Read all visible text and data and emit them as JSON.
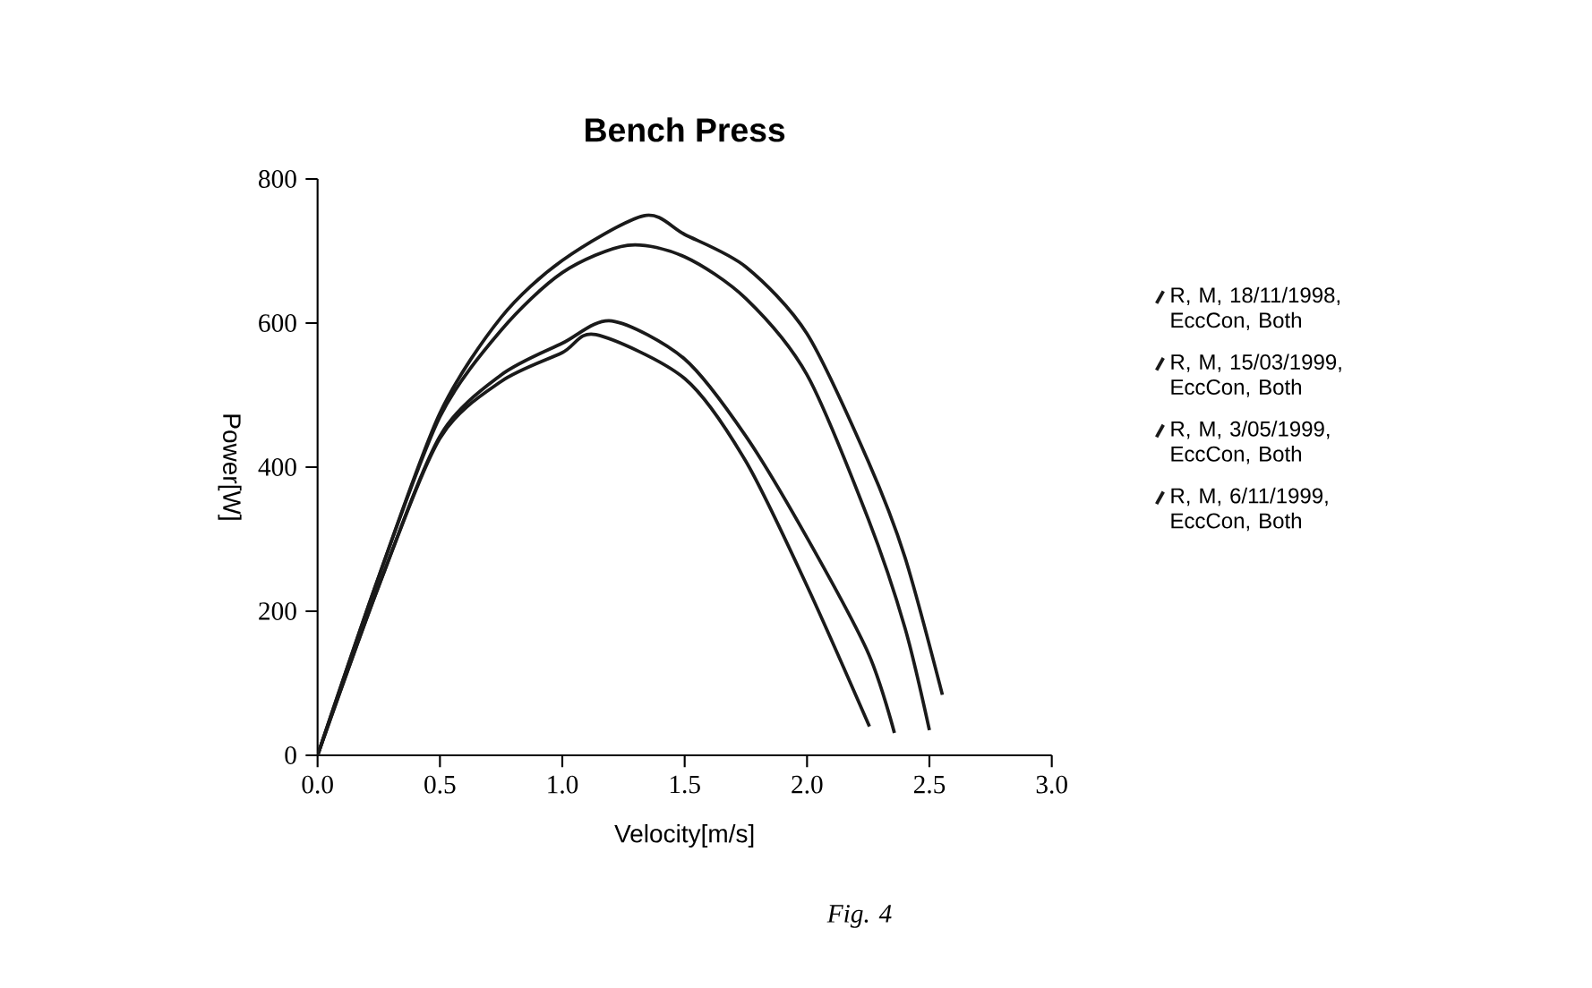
{
  "chart_data": {
    "type": "line",
    "title": "Bench Press",
    "xlabel": "Velocity[m/s]",
    "ylabel": "Power[W]",
    "xlim": [
      0,
      3
    ],
    "ylim": [
      0,
      800
    ],
    "xticks": [
      {
        "value": 0,
        "label": "0.0"
      },
      0.5,
      {
        "value": 1,
        "label": "1.0"
      },
      1.5,
      {
        "value": 2,
        "label": "2.0"
      },
      2.5,
      {
        "value": 3,
        "label": "3.0"
      }
    ],
    "yticks": [
      0,
      200,
      400,
      600,
      800
    ],
    "legend": "right",
    "line_style": "solid",
    "annotations": [
      "Fig. 4"
    ],
    "series": [
      {
        "name": "R, M, 18/11/1998, EccCon, Both",
        "color": "#1a1a1a",
        "x": [
          0,
          0.25,
          0.5,
          0.75,
          1.0,
          1.333,
          1.5,
          1.75,
          2.0,
          2.25,
          2.4,
          2.553
        ],
        "values": [
          0,
          248,
          475,
          608,
          687,
          749,
          723,
          678,
          585,
          408,
          275,
          84
        ]
      },
      {
        "name": "R, M, 15/03/1999, EccCon, Both",
        "color": "#1a1a1a",
        "x": [
          0,
          0.25,
          0.5,
          0.75,
          1.0,
          1.267,
          1.5,
          1.75,
          2.0,
          2.25,
          2.4,
          2.5
        ],
        "values": [
          0,
          248,
          470,
          590,
          670,
          708,
          692,
          634,
          528,
          328,
          177,
          35
        ]
      },
      {
        "name": "R, M, 3/05/1999, EccCon, Both",
        "color": "#1a1a1a",
        "x": [
          0,
          0.25,
          0.5,
          0.75,
          1.0,
          1.202,
          1.5,
          1.75,
          2.0,
          2.25,
          2.357
        ],
        "values": [
          0,
          235,
          443,
          528,
          572,
          603,
          550,
          443,
          302,
          142,
          31
        ]
      },
      {
        "name": "R, M, 6/11/1999, EccCon, Both",
        "color": "#1a1a1a",
        "x": [
          0,
          0.25,
          0.5,
          0.75,
          1.0,
          1.137,
          1.5,
          1.75,
          2.0,
          2.255
        ],
        "values": [
          0,
          235,
          440,
          519,
          559,
          584,
          523,
          408,
          235,
          40
        ]
      }
    ]
  }
}
